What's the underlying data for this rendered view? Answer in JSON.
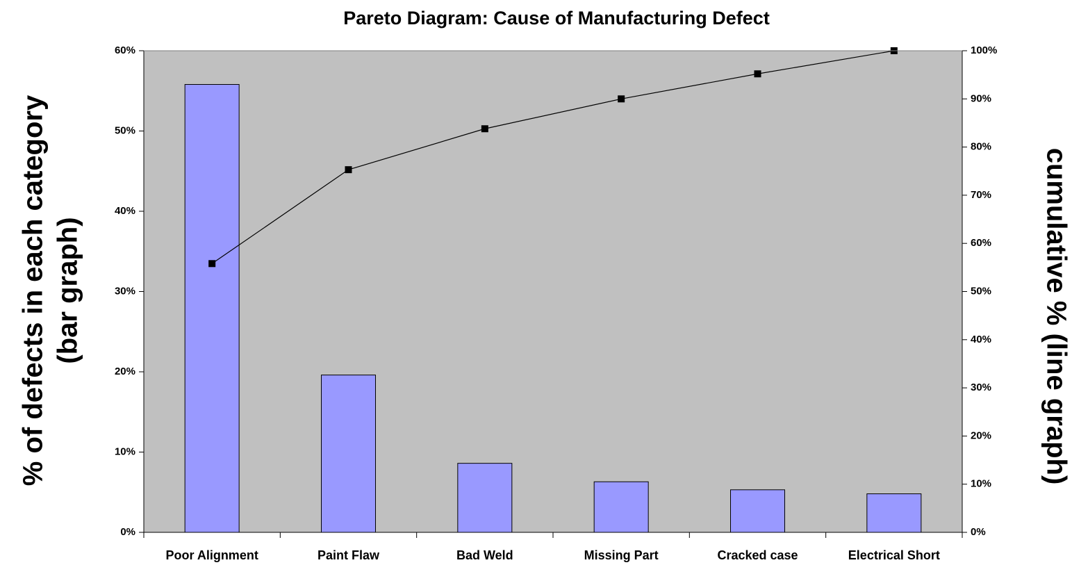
{
  "chart_data": {
    "type": "pareto",
    "title": "Pareto Diagram: Cause of Manufacturing Defect",
    "y_label": [
      "% of defects in each category",
      "(bar graph)"
    ],
    "y2_label": "cumulative % (line graph)",
    "categories": [
      "Poor Alignment",
      "Paint Flaw",
      "Bad Weld",
      "Missing Part",
      "Cracked case",
      "Electrical Short"
    ],
    "series": [
      {
        "type": "bar",
        "color": "#9999ff",
        "values": [
          55.8,
          19.6,
          8.6,
          6.3,
          5.3,
          4.8
        ]
      },
      {
        "type": "line",
        "color": "#000000",
        "axis": "y2",
        "values": [
          55.8,
          75.3,
          83.8,
          90.0,
          95.2,
          100
        ]
      }
    ],
    "ylim": [
      0,
      60
    ],
    "yticks": [
      {
        "value": 0,
        "label": "0%"
      },
      {
        "value": 10,
        "label": "10%"
      },
      {
        "value": 20,
        "label": "20%"
      },
      {
        "value": 30,
        "label": "30%"
      },
      {
        "value": 40,
        "label": "40%"
      },
      {
        "value": 50,
        "label": "50%"
      },
      {
        "value": 60,
        "label": "60%"
      }
    ],
    "y2lim": [
      0,
      100
    ],
    "y2ticks": [
      {
        "value": 0,
        "label": "0%"
      },
      {
        "value": 10,
        "label": "10%"
      },
      {
        "value": 20,
        "label": "20%"
      },
      {
        "value": 30,
        "label": "30%"
      },
      {
        "value": 40,
        "label": "40%"
      },
      {
        "value": 50,
        "label": "50%"
      },
      {
        "value": 60,
        "label": "60%"
      },
      {
        "value": 70,
        "label": "70%"
      },
      {
        "value": 80,
        "label": "80%"
      },
      {
        "value": 90,
        "label": "90%"
      },
      {
        "value": 100,
        "label": "100%"
      }
    ],
    "grid": false,
    "plot_background": "#c0c0c0"
  }
}
